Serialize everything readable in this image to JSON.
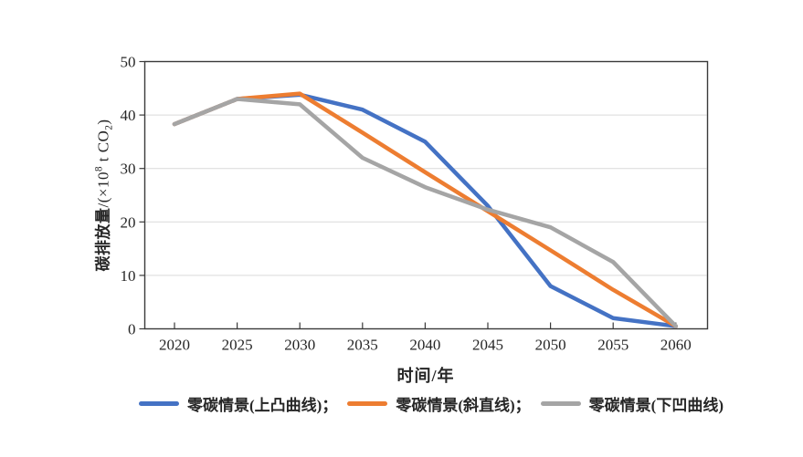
{
  "chart_data": {
    "type": "line",
    "title": "",
    "xlabel": "时间/年",
    "ylabel": "碳排放量/(×10⁸ t CO₂)",
    "ylabel_parts": {
      "cjk": "碳排放量",
      "pre": "/(×10",
      "sup": "8",
      "mid": " t CO",
      "sub": "2",
      "post": ")"
    },
    "x": [
      2020,
      2025,
      2030,
      2035,
      2040,
      2045,
      2050,
      2055,
      2060
    ],
    "ylim": [
      0,
      50
    ],
    "yticks": [
      0,
      10,
      20,
      30,
      40,
      50
    ],
    "grid": "horizontal",
    "legend_position": "bottom",
    "axis_color": "#3a3a3a",
    "grid_color": "#d9d9d9",
    "background_color": "#ffffff",
    "series": [
      {
        "key": "convex",
        "name": "零碳情景(上凸曲线)",
        "color": "#4472C4",
        "values": [
          38.3,
          43.0,
          43.8,
          41.0,
          35.0,
          23.0,
          8.0,
          2.0,
          0.5
        ]
      },
      {
        "key": "straight",
        "name": "零碳情景(斜直线)",
        "color": "#ED7D31",
        "values": [
          38.3,
          43.0,
          44.0,
          36.7,
          29.3,
          22.0,
          14.7,
          7.3,
          0.5
        ]
      },
      {
        "key": "concave",
        "name": "零碳情景(下凹曲线)",
        "color": "#A5A5A5",
        "values": [
          38.3,
          43.0,
          42.0,
          32.0,
          26.5,
          22.3,
          19.0,
          12.5,
          0.5
        ]
      }
    ],
    "legend": [
      {
        "label": "零碳情景(上凸曲线)；"
      },
      {
        "label": "零碳情景(斜直线)；"
      },
      {
        "label": "零碳情景(下凹曲线)"
      }
    ]
  }
}
